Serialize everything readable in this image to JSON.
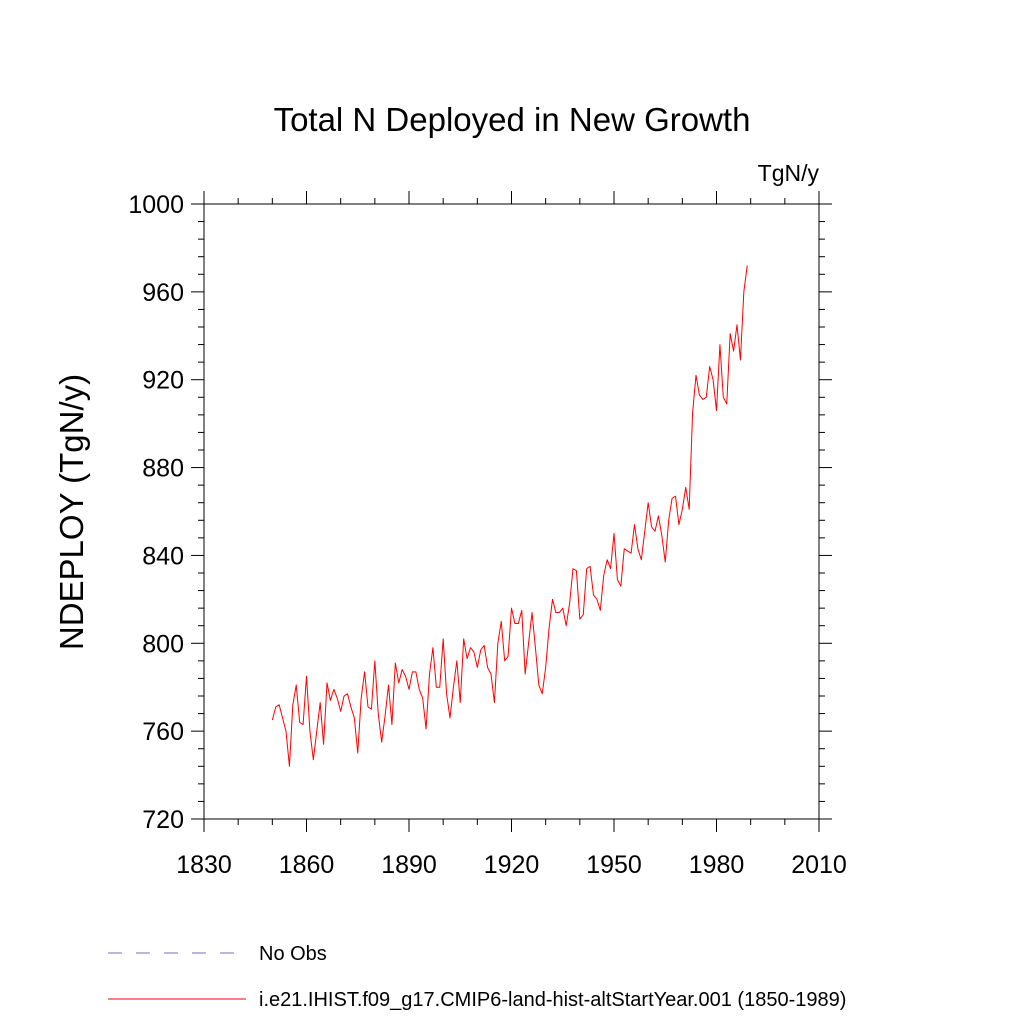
{
  "chart_data": {
    "type": "line",
    "title": "Total N Deployed in New Growth",
    "units_label": "TgN/y",
    "ylabel": "NDEPLOY  (TgN/y)",
    "xlabel": "",
    "xlim": [
      1830,
      2010
    ],
    "ylim": [
      720,
      1000
    ],
    "x_ticks": [
      1830,
      1860,
      1890,
      1920,
      1950,
      1980,
      2010
    ],
    "x_tick_labels": [
      "1830",
      "1860",
      "1890",
      "1920",
      "1950",
      "1980",
      "2010"
    ],
    "y_ticks": [
      720,
      760,
      800,
      840,
      880,
      920,
      960,
      1000
    ],
    "y_tick_labels": [
      "720",
      "760",
      "800",
      "840",
      "880",
      "920",
      "960",
      "1000"
    ],
    "grid": false,
    "legend_placement": "bottom",
    "series": [
      {
        "name": "i.e21.IHIST.f09_g17.CMIP6-land-hist-altStartYear.001 (1850-1989)",
        "color": "#ff0000",
        "style": "solid",
        "x_start": 1850,
        "values": [
          765,
          771,
          772,
          766,
          760,
          744,
          772,
          781,
          764,
          763,
          785,
          760,
          747,
          760,
          773,
          754,
          782,
          774,
          779,
          775,
          769,
          776,
          777,
          771,
          766,
          750,
          775,
          787,
          771,
          770,
          792,
          768,
          755,
          767,
          781,
          763,
          791,
          782,
          788,
          785,
          779,
          787,
          787,
          779,
          775,
          761,
          786,
          798,
          780,
          780,
          802,
          777,
          766,
          780,
          792,
          773,
          802,
          793,
          798,
          796,
          789,
          797,
          799,
          789,
          786,
          773,
          800,
          810,
          792,
          794,
          816,
          809,
          809,
          815,
          786,
          800,
          814,
          798,
          781,
          777,
          789,
          807,
          820,
          814,
          814,
          816,
          808,
          818,
          834,
          833,
          811,
          813,
          834,
          835,
          822,
          820,
          815,
          831,
          838,
          834,
          850,
          829,
          826,
          843,
          842,
          841,
          854,
          843,
          838,
          851,
          864,
          853,
          851,
          858,
          849,
          837,
          856,
          866,
          867,
          854,
          861,
          871,
          861,
          905,
          922,
          913,
          911,
          912,
          926,
          920,
          906,
          936,
          912,
          909,
          941,
          933,
          945,
          929,
          960,
          972
        ]
      },
      {
        "name": "No Obs",
        "color": "#7a6fb3",
        "style": "dashed",
        "values": []
      }
    ]
  }
}
